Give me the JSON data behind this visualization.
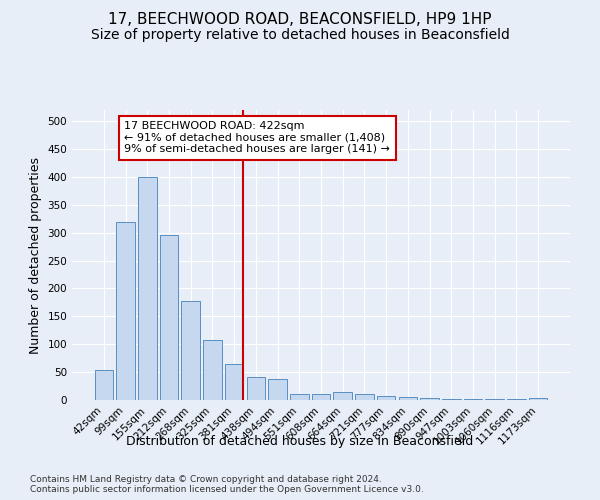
{
  "title_line1": "17, BEECHWOOD ROAD, BEACONSFIELD, HP9 1HP",
  "title_line2": "Size of property relative to detached houses in Beaconsfield",
  "xlabel": "Distribution of detached houses by size in Beaconsfield",
  "ylabel": "Number of detached properties",
  "footer_line1": "Contains HM Land Registry data © Crown copyright and database right 2024.",
  "footer_line2": "Contains public sector information licensed under the Open Government Licence v3.0.",
  "categories": [
    "42sqm",
    "99sqm",
    "155sqm",
    "212sqm",
    "268sqm",
    "325sqm",
    "381sqm",
    "438sqm",
    "494sqm",
    "551sqm",
    "608sqm",
    "664sqm",
    "721sqm",
    "777sqm",
    "834sqm",
    "890sqm",
    "947sqm",
    "1003sqm",
    "1060sqm",
    "1116sqm",
    "1173sqm"
  ],
  "values": [
    53,
    320,
    400,
    295,
    178,
    107,
    65,
    42,
    37,
    11,
    10,
    14,
    11,
    7,
    5,
    3,
    1,
    1,
    1,
    1,
    4
  ],
  "bar_color": "#c5d8f0",
  "bar_edge_color": "#5a8fc2",
  "vline_x_index": 6,
  "vline_color": "#cc0000",
  "annotation_text": "17 BEECHWOOD ROAD: 422sqm\n← 91% of detached houses are smaller (1,408)\n9% of semi-detached houses are larger (141) →",
  "annotation_box_color": "white",
  "annotation_box_edge_color": "#cc0000",
  "ylim": [
    0,
    520
  ],
  "yticks": [
    0,
    50,
    100,
    150,
    200,
    250,
    300,
    350,
    400,
    450,
    500
  ],
  "background_color": "#e8eef7",
  "plot_background_color": "#e8eef7",
  "grid_color": "white",
  "title_fontsize": 11,
  "subtitle_fontsize": 10,
  "ylabel_fontsize": 9,
  "xlabel_fontsize": 9,
  "tick_fontsize": 7.5,
  "annotation_fontsize": 8,
  "footer_fontsize": 6.5
}
